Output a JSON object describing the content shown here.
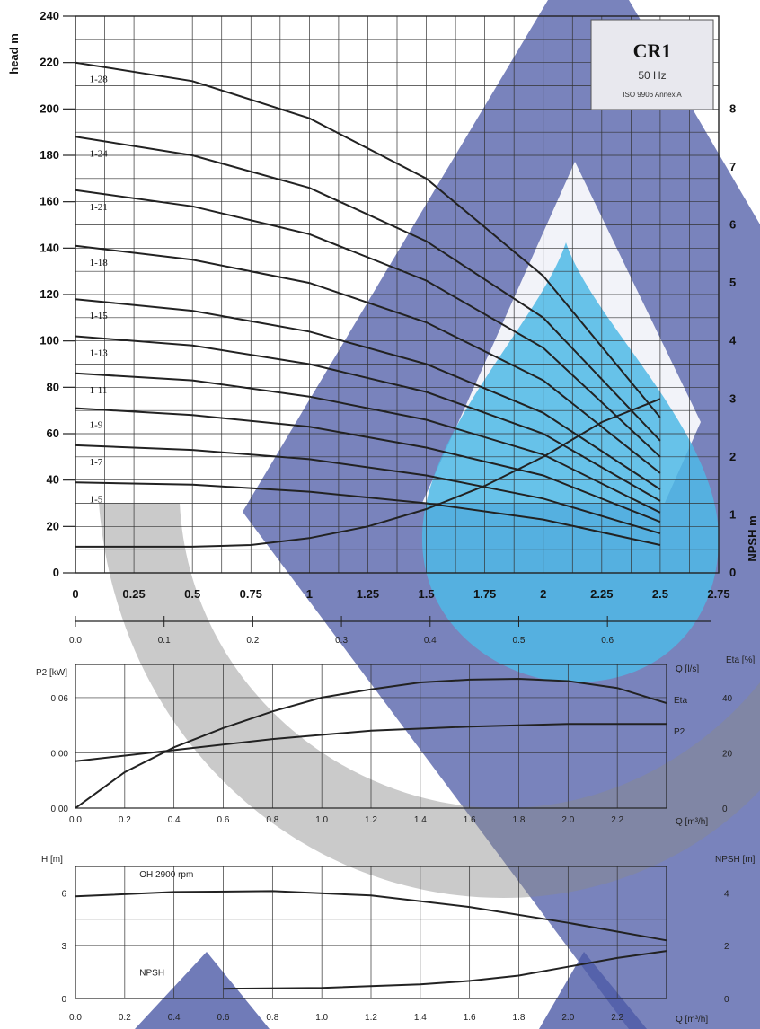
{
  "chart_data": [
    {
      "type": "line",
      "panel": "head",
      "legend_box": {
        "title": "CR1",
        "frequency": "50 Hz",
        "standard": "ISO 9906 Annex A"
      },
      "ylabel": "head m",
      "ylabel_right": "NPSH m",
      "xlim": [
        0,
        2.75
      ],
      "ylim": [
        0,
        240
      ],
      "y2lim": [
        0,
        9.6
      ],
      "x_ticks": [
        "0",
        "0.25",
        "0.5",
        "0.75",
        "1",
        "1.25",
        "1.5",
        "1.75",
        "2",
        "2.25",
        "2.5",
        "2.75"
      ],
      "y_ticks": [
        "0",
        "20",
        "40",
        "60",
        "80",
        "100",
        "120",
        "140",
        "160",
        "180",
        "200",
        "220",
        "240"
      ],
      "y2_ticks": [
        "0",
        "1",
        "2",
        "3",
        "4",
        "5",
        "6",
        "7",
        "8"
      ],
      "grid": true,
      "series": [
        {
          "name": "1-28",
          "x": [
            0,
            0.5,
            1,
            1.5,
            2,
            2.5
          ],
          "y": [
            220,
            212,
            196,
            170,
            128,
            67
          ]
        },
        {
          "name": "1-24",
          "x": [
            0,
            0.5,
            1,
            1.5,
            2,
            2.5
          ],
          "y": [
            188,
            180,
            166,
            143,
            110,
            57
          ]
        },
        {
          "name": "1-21",
          "x": [
            0,
            0.5,
            1,
            1.5,
            2,
            2.5
          ],
          "y": [
            165,
            158,
            146,
            126,
            97,
            50
          ]
        },
        {
          "name": "1-18",
          "x": [
            0,
            0.5,
            1,
            1.5,
            2,
            2.5
          ],
          "y": [
            141,
            135,
            125,
            108,
            83,
            43
          ]
        },
        {
          "name": "1-15",
          "x": [
            0,
            0.5,
            1,
            1.5,
            2,
            2.5
          ],
          "y": [
            118,
            113,
            104,
            90,
            69,
            36
          ]
        },
        {
          "name": "1-13",
          "x": [
            0,
            0.5,
            1,
            1.5,
            2,
            2.5
          ],
          "y": [
            102,
            98,
            90,
            78,
            60,
            31
          ]
        },
        {
          "name": "1-11",
          "x": [
            0,
            0.5,
            1,
            1.5,
            2,
            2.5
          ],
          "y": [
            86,
            83,
            76,
            66,
            51,
            26
          ]
        },
        {
          "name": "1-9",
          "x": [
            0,
            0.5,
            1,
            1.5,
            2,
            2.5
          ],
          "y": [
            71,
            68,
            63,
            54,
            42,
            22
          ]
        },
        {
          "name": "1-7",
          "x": [
            0,
            0.5,
            1,
            1.5,
            2,
            2.5
          ],
          "y": [
            55,
            53,
            49,
            42,
            32,
            17
          ]
        },
        {
          "name": "1-5",
          "x": [
            0,
            0.5,
            1,
            1.5,
            2,
            2.5
          ],
          "y": [
            39,
            38,
            35,
            30,
            23,
            12
          ]
        }
      ],
      "npsh_curve": {
        "x": [
          0,
          0.5,
          0.75,
          1,
          1.25,
          1.5,
          1.75,
          2,
          2.25,
          2.5
        ],
        "y2": [
          0.45,
          0.45,
          0.48,
          0.6,
          0.8,
          1.1,
          1.5,
          2.0,
          2.6,
          3.0
        ]
      }
    },
    {
      "type": "line",
      "panel": "power-efficiency",
      "x_secondary_label": "Q [l/s]",
      "x_secondary_ticks": [
        "0.0",
        "0.1",
        "0.2",
        "0.3",
        "0.4",
        "0.5",
        "0.6"
      ],
      "ylabel": "P2 [kW]",
      "ylabel_right": "Eta [%]",
      "xlabel": "Q [m³/h]",
      "x_ticks": [
        "0.0",
        "0.2",
        "0.4",
        "0.6",
        "0.8",
        "1.0",
        "1.2",
        "1.4",
        "1.6",
        "1.8",
        "2.0",
        "2.2"
      ],
      "y_ticks": [
        "0.00",
        "0.00",
        "0.06"
      ],
      "y2_ticks": [
        "0",
        "20",
        "40"
      ],
      "xlim": [
        0,
        2.4
      ],
      "series": [
        {
          "name": "Eta",
          "x": [
            0,
            0.2,
            0.4,
            0.6,
            0.8,
            1.0,
            1.2,
            1.4,
            1.6,
            1.8,
            2.0,
            2.2,
            2.4
          ],
          "y": [
            0,
            13,
            22,
            29,
            35,
            40,
            43,
            45.5,
            46.5,
            46.8,
            46,
            43.5,
            38
          ]
        },
        {
          "name": "P2",
          "x": [
            0,
            0.4,
            0.8,
            1.2,
            1.6,
            2.0,
            2.4
          ],
          "y": [
            17,
            21,
            25,
            28,
            29.5,
            30.5,
            30.5
          ]
        }
      ]
    },
    {
      "type": "line",
      "panel": "single-stage",
      "ylabel": "H [m]",
      "ylabel_right": "NPSH [m]",
      "xlabel": "Q [m³/h]",
      "x_ticks": [
        "0.0",
        "0.2",
        "0.4",
        "0.6",
        "0.8",
        "1.0",
        "1.2",
        "1.4",
        "1.6",
        "1.8",
        "2.0",
        "2.2"
      ],
      "y_ticks": [
        "0",
        "3",
        "6"
      ],
      "y2_ticks": [
        "0",
        "2",
        "4"
      ],
      "xlim": [
        0,
        2.4
      ],
      "series": [
        {
          "name": "OH 2900 rpm",
          "x": [
            0,
            0.4,
            0.8,
            1.2,
            1.6,
            2.0,
            2.4
          ],
          "y": [
            5.8,
            6.05,
            6.1,
            5.85,
            5.2,
            4.3,
            3.3
          ]
        },
        {
          "name": "NPSH",
          "x": [
            0.6,
            1.0,
            1.4,
            1.6,
            1.8,
            2.0,
            2.2,
            2.4
          ],
          "y": [
            0.55,
            0.6,
            0.8,
            1.0,
            1.3,
            1.8,
            2.3,
            2.7
          ]
        }
      ]
    }
  ]
}
